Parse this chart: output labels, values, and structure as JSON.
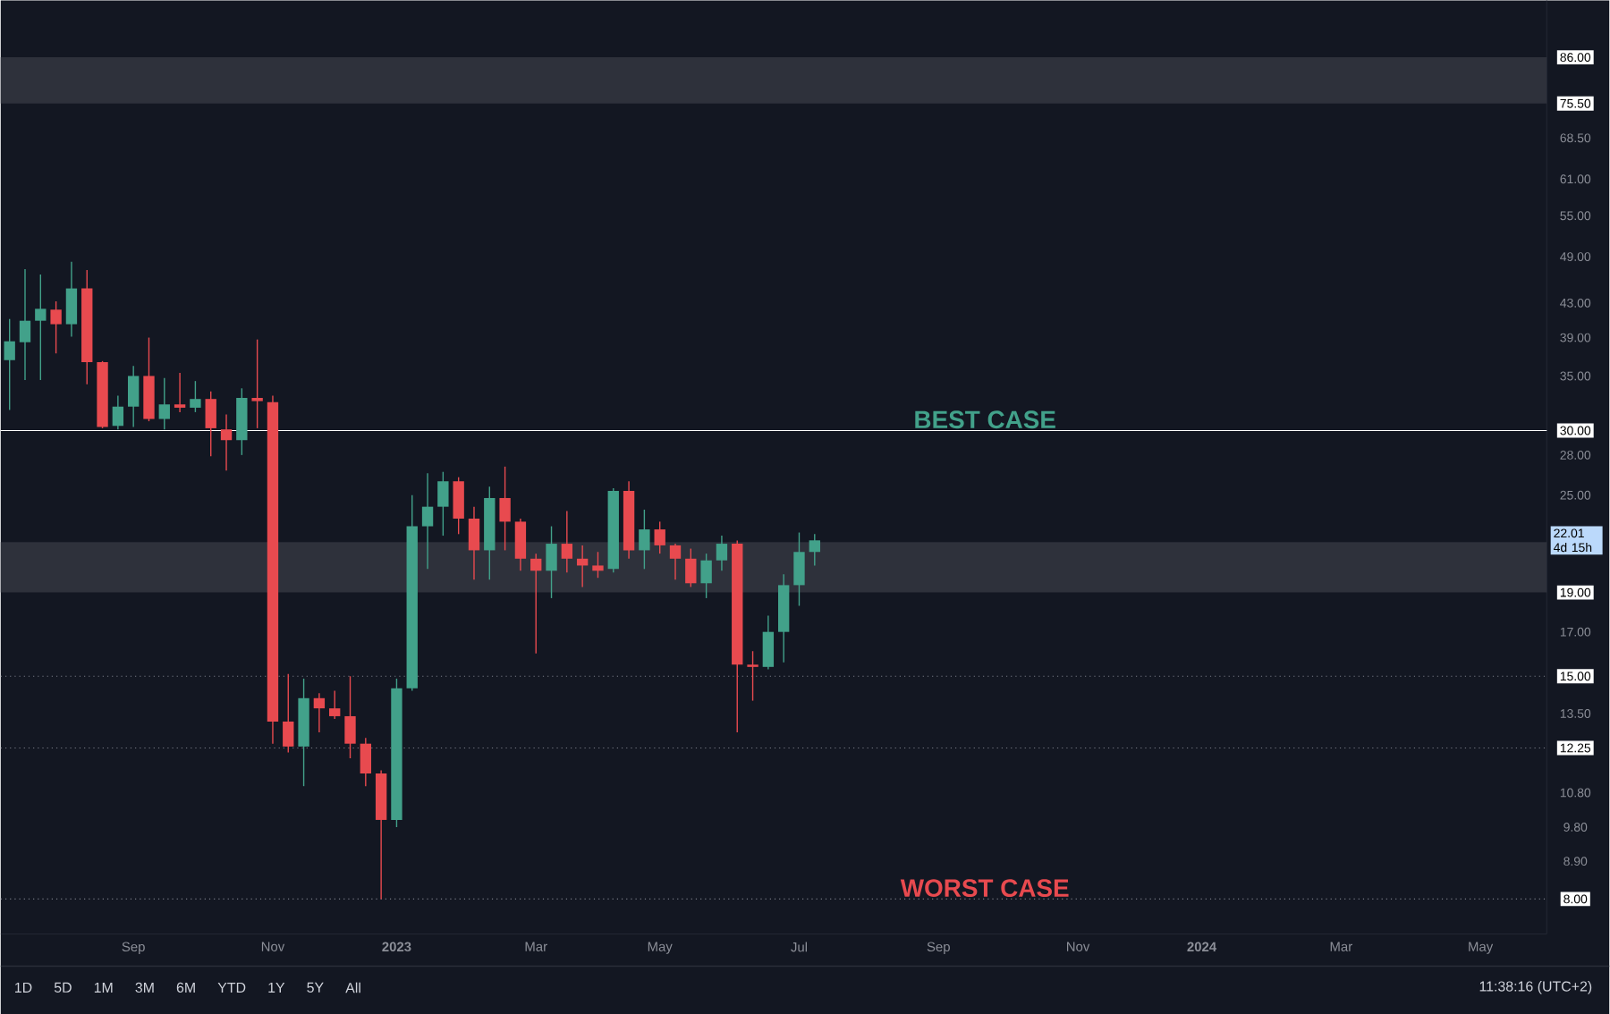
{
  "chart_data": {
    "type": "candlestick",
    "x": [
      "2022-07-11",
      "2022-07-18",
      "2022-07-25",
      "2022-08-01",
      "2022-08-08",
      "2022-08-15",
      "2022-08-22",
      "2022-08-29",
      "2022-09-05",
      "2022-09-12",
      "2022-09-19",
      "2022-09-26",
      "2022-10-03",
      "2022-10-10",
      "2022-10-17",
      "2022-10-24",
      "2022-10-31",
      "2022-11-07",
      "2022-11-14",
      "2022-11-21",
      "2022-11-28",
      "2022-12-05",
      "2022-12-12",
      "2022-12-19",
      "2022-12-26",
      "2023-01-02",
      "2023-01-09",
      "2023-01-16",
      "2023-01-23",
      "2023-01-30",
      "2023-02-06",
      "2023-02-13",
      "2023-02-20",
      "2023-02-27",
      "2023-03-06",
      "2023-03-13",
      "2023-03-20",
      "2023-03-27",
      "2023-04-03",
      "2023-04-10",
      "2023-04-17",
      "2023-04-24",
      "2023-05-01",
      "2023-05-08",
      "2023-05-15",
      "2023-05-22",
      "2023-05-29",
      "2023-06-05",
      "2023-06-12",
      "2023-06-19",
      "2023-06-26",
      "2023-07-03",
      "2023-07-10"
    ],
    "ohlc": [
      [
        36.6,
        41.1,
        31.8,
        38.6
      ],
      [
        38.5,
        47.3,
        34.6,
        40.9
      ],
      [
        40.9,
        46.6,
        34.6,
        42.3
      ],
      [
        42.2,
        43.2,
        37.3,
        40.5
      ],
      [
        40.5,
        48.3,
        39.1,
        44.8
      ],
      [
        44.8,
        47.2,
        34.2,
        36.4
      ],
      [
        36.4,
        36.5,
        30.2,
        30.3
      ],
      [
        30.4,
        33.1,
        30.1,
        32.1
      ],
      [
        32.1,
        36.0,
        30.3,
        35.0
      ],
      [
        35.0,
        39.0,
        30.8,
        31.0
      ],
      [
        31.0,
        34.8,
        30.1,
        32.3
      ],
      [
        32.3,
        35.3,
        31.6,
        32.0
      ],
      [
        32.0,
        34.5,
        31.6,
        32.8
      ],
      [
        32.8,
        33.5,
        27.9,
        30.2
      ],
      [
        30.1,
        31.4,
        26.8,
        29.2
      ],
      [
        29.2,
        33.8,
        28.0,
        32.9
      ],
      [
        32.9,
        38.8,
        30.2,
        32.6
      ],
      [
        32.5,
        33.1,
        12.4,
        13.2
      ],
      [
        13.2,
        15.1,
        12.1,
        12.3
      ],
      [
        12.3,
        14.9,
        11.0,
        14.1
      ],
      [
        14.1,
        14.3,
        12.8,
        13.7
      ],
      [
        13.7,
        14.4,
        13.3,
        13.4
      ],
      [
        13.4,
        15.0,
        11.9,
        12.4
      ],
      [
        12.4,
        12.6,
        11.0,
        11.4
      ],
      [
        11.4,
        11.5,
        8.0,
        10.0
      ],
      [
        10.0,
        14.9,
        9.8,
        14.5
      ],
      [
        14.5,
        25.0,
        14.4,
        22.9
      ],
      [
        22.9,
        26.6,
        20.3,
        24.2
      ],
      [
        24.2,
        26.7,
        22.3,
        26.0
      ],
      [
        26.0,
        26.3,
        22.4,
        23.4
      ],
      [
        23.4,
        24.2,
        19.7,
        21.4
      ],
      [
        21.4,
        25.6,
        19.7,
        24.8
      ],
      [
        24.8,
        27.1,
        21.4,
        23.2
      ],
      [
        23.2,
        23.4,
        20.2,
        20.9
      ],
      [
        20.9,
        21.2,
        16.0,
        20.2
      ],
      [
        20.2,
        22.9,
        18.7,
        21.8
      ],
      [
        21.8,
        23.9,
        20.1,
        20.9
      ],
      [
        20.9,
        21.7,
        19.3,
        20.5
      ],
      [
        20.5,
        21.3,
        19.8,
        20.2
      ],
      [
        20.3,
        25.5,
        20.1,
        25.3
      ],
      [
        25.3,
        26.0,
        20.9,
        21.4
      ],
      [
        21.4,
        24.0,
        20.3,
        22.7
      ],
      [
        22.7,
        23.2,
        21.2,
        21.7
      ],
      [
        21.7,
        21.8,
        19.7,
        20.9
      ],
      [
        20.9,
        21.5,
        19.3,
        19.5
      ],
      [
        19.5,
        21.2,
        18.7,
        20.8
      ],
      [
        20.8,
        22.3,
        20.2,
        21.8
      ],
      [
        21.8,
        22.0,
        12.8,
        15.5
      ],
      [
        15.5,
        16.1,
        14.0,
        15.4
      ],
      [
        15.4,
        17.8,
        15.3,
        17.0
      ],
      [
        17.0,
        20.0,
        15.6,
        19.4
      ],
      [
        19.4,
        22.5,
        18.3,
        21.3
      ],
      [
        21.3,
        22.4,
        20.5,
        22.01
      ]
    ],
    "colors": [
      "#42a18a",
      "#42a18a",
      "#42a18a",
      "#e84a4f",
      "#42a18a",
      "#e84a4f",
      "#e84a4f",
      "#42a18a",
      "#42a18a",
      "#e84a4f",
      "#42a18a",
      "#e84a4f",
      "#42a18a",
      "#e84a4f",
      "#e84a4f",
      "#42a18a",
      "#e84a4f",
      "#e84a4f",
      "#e84a4f",
      "#42a18a",
      "#e84a4f",
      "#e84a4f",
      "#e84a4f",
      "#e84a4f",
      "#e84a4f",
      "#42a18a",
      "#42a18a",
      "#42a18a",
      "#42a18a",
      "#e84a4f",
      "#e84a4f",
      "#42a18a",
      "#e84a4f",
      "#e84a4f",
      "#e84a4f",
      "#42a18a",
      "#e84a4f",
      "#e84a4f",
      "#e84a4f",
      "#42a18a",
      "#e84a4f",
      "#42a18a",
      "#e84a4f",
      "#e84a4f",
      "#e84a4f",
      "#42a18a",
      "#42a18a",
      "#e84a4f",
      "#e84a4f",
      "#42a18a",
      "#42a18a",
      "#42a18a",
      "#42a18a"
    ],
    "xlim": [
      "2022-07-07",
      "2024-06-05"
    ],
    "xticks": [
      {
        "value": "2022-09-05",
        "label": "Sep"
      },
      {
        "value": "2022-11-07",
        "label": "Nov"
      },
      {
        "value": "2023-01-02",
        "label": "2023"
      },
      {
        "value": "2023-03-06",
        "label": "Mar"
      },
      {
        "value": "2023-05-01",
        "label": "May"
      },
      {
        "value": "2023-07-03",
        "label": "Jul"
      },
      {
        "value": "2023-09-04",
        "label": "Sep"
      },
      {
        "value": "2023-11-06",
        "label": "Nov"
      },
      {
        "value": "2024-01-01",
        "label": "2024"
      },
      {
        "value": "2024-03-04",
        "label": "Mar"
      },
      {
        "value": "2024-05-06",
        "label": "May"
      }
    ],
    "log": "y",
    "ylim": [
      7.25,
      101
    ],
    "yticks": [
      {
        "value": 8,
        "label": "8.00"
      },
      {
        "value": 8.9,
        "label": "8.90"
      },
      {
        "value": 9.8,
        "label": "9.80"
      },
      {
        "value": 10.8,
        "label": "10.80"
      },
      {
        "value": 12.25,
        "label": "12.25"
      },
      {
        "value": 13.5,
        "label": "13.50"
      },
      {
        "value": 15,
        "label": "15.00"
      },
      {
        "value": 17,
        "label": "17.00"
      },
      {
        "value": 19,
        "label": "19.00"
      },
      {
        "value": 25,
        "label": "25.00"
      },
      {
        "value": 28,
        "label": "28.00"
      },
      {
        "value": 30,
        "label": "30.00"
      },
      {
        "value": 35,
        "label": "35.00"
      },
      {
        "value": 39,
        "label": "39.00"
      },
      {
        "value": 43,
        "label": "43.00"
      },
      {
        "value": 49,
        "label": "49.00"
      },
      {
        "value": 55,
        "label": "55.00"
      },
      {
        "value": 61,
        "label": "61.00"
      },
      {
        "value": 68.5,
        "label": "68.50"
      },
      {
        "value": 75.5,
        "label": "75.50"
      },
      {
        "value": 86,
        "label": "86.00"
      }
    ],
    "ref_lines": [
      {
        "axis": "y",
        "value": 30,
        "color": "#ffffff",
        "line_style": "solid"
      },
      {
        "axis": "y",
        "value": 15,
        "color": "#787b86",
        "line_style": "dotted"
      },
      {
        "axis": "y",
        "value": 12.25,
        "color": "#787b86",
        "line_style": "dotted"
      },
      {
        "axis": "y",
        "value": 8,
        "color": "#787b86",
        "line_style": "dotted"
      }
    ],
    "bands": [
      {
        "axis": "y",
        "from": 75.5,
        "to": 86,
        "color": "#2e313b"
      },
      {
        "axis": "y",
        "from": 19,
        "to": 21.9,
        "color": "#2e313b"
      }
    ],
    "annotations": [
      {
        "text": "BEST CASE",
        "x": "2023-09-25",
        "y": 30
      },
      {
        "text": "WORST CASE",
        "x": "2023-09-25",
        "y": 8
      },
      "22.01 4d 15h",
      "1D",
      "5D",
      "1M",
      "3M",
      "6M",
      "YTD",
      "1Y",
      "5Y",
      "All",
      "11:38:16 (UTC+2)"
    ]
  }
}
